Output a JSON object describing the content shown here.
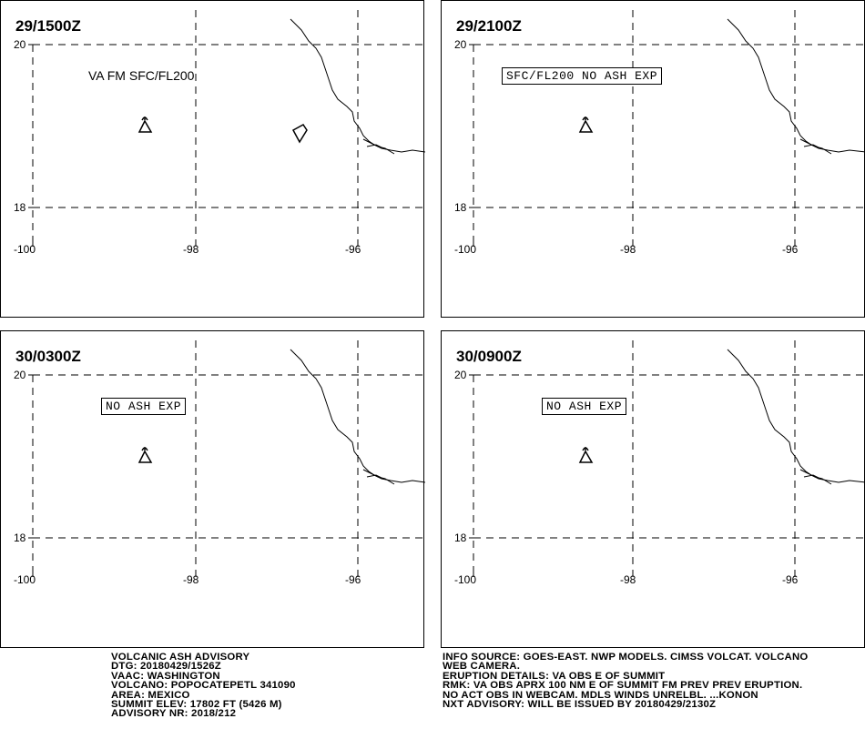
{
  "panels": [
    {
      "title": "29/1500Z",
      "lat_labels": [
        "20",
        "18"
      ],
      "lon_labels": [
        "-100",
        "-98",
        "-96"
      ],
      "note": "VA FM SFC/FL200",
      "note_style": "plain",
      "ash_polygon": true
    },
    {
      "title": "29/2100Z",
      "lat_labels": [
        "20",
        "18"
      ],
      "lon_labels": [
        "-100",
        "-98",
        "-96"
      ],
      "note": "SFC/FL200 NO ASH EXP",
      "note_style": "boxed",
      "ash_polygon": false
    },
    {
      "title": "30/0300Z",
      "lat_labels": [
        "20",
        "18"
      ],
      "lon_labels": [
        "-100",
        "-98",
        "-96"
      ],
      "note": "NO ASH EXP",
      "note_style": "boxed",
      "ash_polygon": false
    },
    {
      "title": "30/0900Z",
      "lat_labels": [
        "20",
        "18"
      ],
      "lon_labels": [
        "-100",
        "-98",
        "-96"
      ],
      "note": "NO ASH EXP",
      "note_style": "boxed",
      "ash_polygon": false
    }
  ],
  "volcano_symbol": "volcano-icon",
  "advisory_left": [
    "VOLCANIC ASH ADVISORY",
    "DTG: 20180429/1526Z",
    "VAAC: WASHINGTON",
    "VOLCANO: POPOCATEPETL 341090",
    "AREA: MEXICO",
    "SUMMIT ELEV: 17802 FT (5426 M)",
    "ADVISORY NR: 2018/212"
  ],
  "advisory_right": [
    "INFO SOURCE: GOES-EAST. NWP MODELS. CIMSS VOLCAT. VOLCANO",
    "WEB CAMERA.",
    "ERUPTION DETAILS: VA OBS E OF SUMMIT",
    "RMK: VA OBS APRX 100 NM E OF SUMMIT FM PREV PREV ERUPTION.",
    "NO ACT OBS IN WEBCAM. MDLS WINDS UNRELBL. ...KONON",
    "NXT ADVISORY: WILL BE ISSUED BY 20180429/2130Z"
  ]
}
